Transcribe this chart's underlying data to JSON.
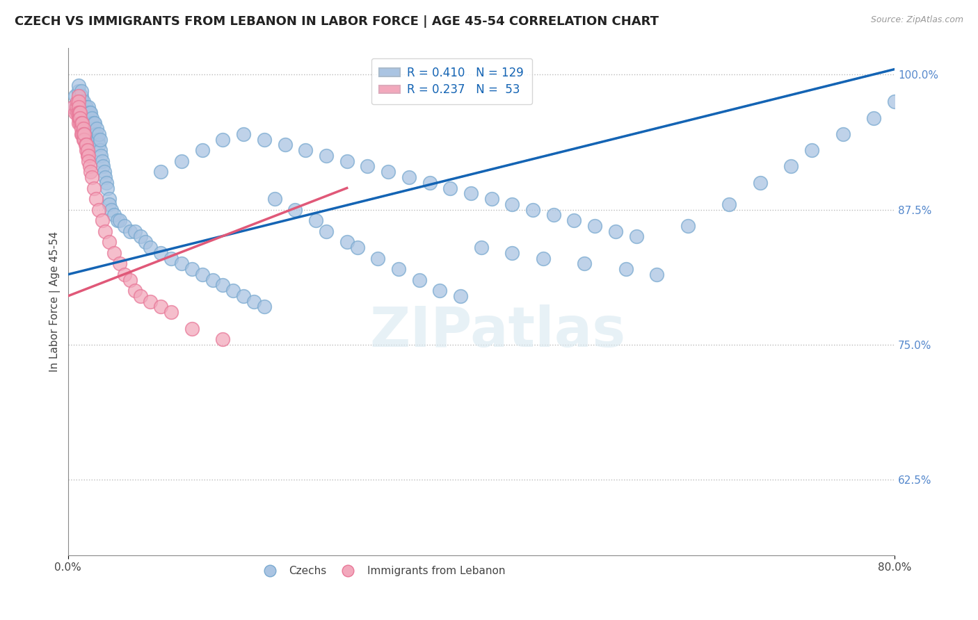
{
  "title": "CZECH VS IMMIGRANTS FROM LEBANON IN LABOR FORCE | AGE 45-54 CORRELATION CHART",
  "source": "Source: ZipAtlas.com",
  "ylabel": "In Labor Force | Age 45-54",
  "xlim": [
    0.0,
    0.8
  ],
  "ylim": [
    0.555,
    1.025
  ],
  "yticks": [
    0.625,
    0.75,
    0.875,
    1.0
  ],
  "yticklabels": [
    "62.5%",
    "75.0%",
    "87.5%",
    "100.0%"
  ],
  "blue_R": 0.41,
  "blue_N": 129,
  "pink_R": 0.237,
  "pink_N": 53,
  "blue_color": "#aac4e2",
  "pink_color": "#f2a8bc",
  "blue_edge_color": "#7aaad0",
  "pink_edge_color": "#e87898",
  "blue_line_color": "#1464b4",
  "pink_line_color": "#e05878",
  "blue_line_dash_color": "#8ab4d8",
  "legend_text_color": "#1464b4",
  "title_fontsize": 13,
  "axis_fontsize": 11,
  "tick_fontsize": 11,
  "watermark": "ZIPatlas",
  "blue_line_x0": 0.0,
  "blue_line_y0": 0.815,
  "blue_line_x1": 0.8,
  "blue_line_y1": 1.005,
  "pink_line_x0": 0.0,
  "pink_line_y0": 0.795,
  "pink_line_x1": 0.27,
  "pink_line_y1": 0.895,
  "blue_x": [
    0.005,
    0.007,
    0.01,
    0.01,
    0.01,
    0.012,
    0.012,
    0.013,
    0.013,
    0.014,
    0.014,
    0.015,
    0.015,
    0.015,
    0.015,
    0.016,
    0.016,
    0.016,
    0.017,
    0.017,
    0.017,
    0.018,
    0.018,
    0.018,
    0.018,
    0.019,
    0.019,
    0.02,
    0.02,
    0.02,
    0.02,
    0.021,
    0.021,
    0.022,
    0.022,
    0.023,
    0.023,
    0.024,
    0.025,
    0.025,
    0.026,
    0.026,
    0.027,
    0.028,
    0.028,
    0.029,
    0.03,
    0.03,
    0.031,
    0.031,
    0.032,
    0.033,
    0.034,
    0.035,
    0.036,
    0.037,
    0.038,
    0.04,
    0.04,
    0.042,
    0.045,
    0.048,
    0.05,
    0.055,
    0.06,
    0.065,
    0.07,
    0.075,
    0.08,
    0.09,
    0.1,
    0.11,
    0.12,
    0.13,
    0.14,
    0.15,
    0.16,
    0.17,
    0.18,
    0.19,
    0.2,
    0.22,
    0.24,
    0.25,
    0.27,
    0.28,
    0.3,
    0.32,
    0.34,
    0.36,
    0.38,
    0.4,
    0.43,
    0.46,
    0.5,
    0.54,
    0.57,
    0.6,
    0.64,
    0.67,
    0.7,
    0.72,
    0.75,
    0.78,
    0.8,
    0.09,
    0.11,
    0.13,
    0.15,
    0.17,
    0.19,
    0.21,
    0.23,
    0.25,
    0.27,
    0.29,
    0.31,
    0.33,
    0.35,
    0.37,
    0.39,
    0.41,
    0.43,
    0.45,
    0.47,
    0.49,
    0.51,
    0.53,
    0.55
  ],
  "blue_y": [
    0.97,
    0.98,
    0.975,
    0.985,
    0.99,
    0.97,
    0.975,
    0.98,
    0.985,
    0.975,
    0.97,
    0.96,
    0.965,
    0.97,
    0.975,
    0.955,
    0.96,
    0.965,
    0.96,
    0.965,
    0.97,
    0.955,
    0.96,
    0.965,
    0.97,
    0.96,
    0.965,
    0.955,
    0.96,
    0.965,
    0.97,
    0.955,
    0.965,
    0.955,
    0.965,
    0.955,
    0.96,
    0.95,
    0.945,
    0.955,
    0.945,
    0.955,
    0.945,
    0.94,
    0.95,
    0.94,
    0.935,
    0.945,
    0.93,
    0.94,
    0.925,
    0.92,
    0.915,
    0.91,
    0.905,
    0.9,
    0.895,
    0.885,
    0.88,
    0.875,
    0.87,
    0.865,
    0.865,
    0.86,
    0.855,
    0.855,
    0.85,
    0.845,
    0.84,
    0.835,
    0.83,
    0.825,
    0.82,
    0.815,
    0.81,
    0.805,
    0.8,
    0.795,
    0.79,
    0.785,
    0.885,
    0.875,
    0.865,
    0.855,
    0.845,
    0.84,
    0.83,
    0.82,
    0.81,
    0.8,
    0.795,
    0.84,
    0.835,
    0.83,
    0.825,
    0.82,
    0.815,
    0.86,
    0.88,
    0.9,
    0.915,
    0.93,
    0.945,
    0.96,
    0.975,
    0.91,
    0.92,
    0.93,
    0.94,
    0.945,
    0.94,
    0.935,
    0.93,
    0.925,
    0.92,
    0.915,
    0.91,
    0.905,
    0.9,
    0.895,
    0.89,
    0.885,
    0.88,
    0.875,
    0.87,
    0.865,
    0.86,
    0.855,
    0.85
  ],
  "pink_x": [
    0.005,
    0.007,
    0.008,
    0.009,
    0.009,
    0.01,
    0.01,
    0.01,
    0.01,
    0.01,
    0.01,
    0.011,
    0.011,
    0.012,
    0.012,
    0.012,
    0.013,
    0.013,
    0.013,
    0.014,
    0.014,
    0.015,
    0.015,
    0.015,
    0.016,
    0.016,
    0.017,
    0.018,
    0.018,
    0.019,
    0.019,
    0.02,
    0.02,
    0.021,
    0.022,
    0.023,
    0.025,
    0.027,
    0.03,
    0.033,
    0.036,
    0.04,
    0.045,
    0.05,
    0.055,
    0.06,
    0.065,
    0.07,
    0.08,
    0.09,
    0.1,
    0.12,
    0.15
  ],
  "pink_y": [
    0.97,
    0.965,
    0.97,
    0.975,
    0.965,
    0.98,
    0.975,
    0.97,
    0.965,
    0.96,
    0.955,
    0.965,
    0.96,
    0.955,
    0.965,
    0.96,
    0.955,
    0.95,
    0.945,
    0.945,
    0.955,
    0.95,
    0.945,
    0.94,
    0.94,
    0.945,
    0.935,
    0.93,
    0.935,
    0.925,
    0.93,
    0.925,
    0.92,
    0.915,
    0.91,
    0.905,
    0.895,
    0.885,
    0.875,
    0.865,
    0.855,
    0.845,
    0.835,
    0.825,
    0.815,
    0.81,
    0.8,
    0.795,
    0.79,
    0.785,
    0.78,
    0.765,
    0.755
  ]
}
